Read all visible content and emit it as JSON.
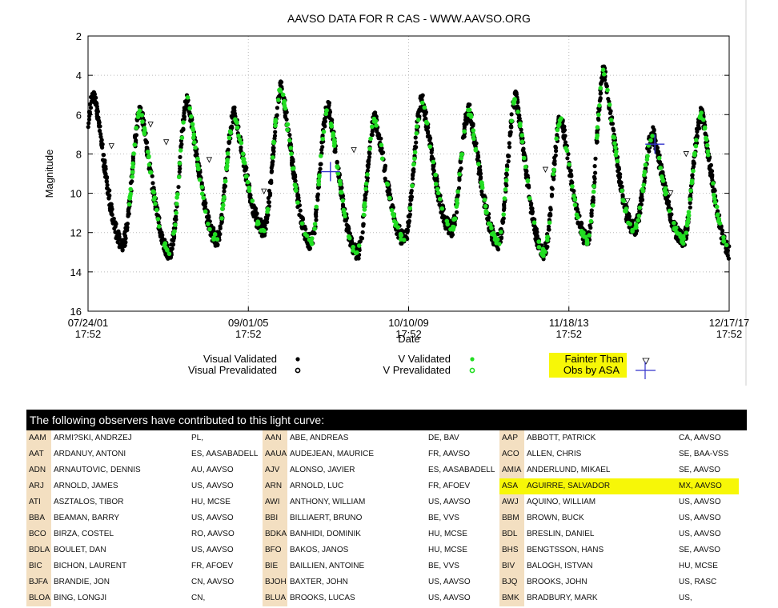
{
  "chart_data": {
    "type": "scatter",
    "title": "AAVSO DATA FOR R CAS - WWW.AAVSO.ORG",
    "xlabel": "Date",
    "ylabel": "Magnitude",
    "y_reversed": true,
    "ylim": [
      16,
      2
    ],
    "yticks": [
      "2",
      "4",
      "6",
      "8",
      "10",
      "12",
      "14",
      "16"
    ],
    "xticks": [
      {
        "date": "07/24/01",
        "time": "17:52"
      },
      {
        "date": "09/01/05",
        "time": "17:52"
      },
      {
        "date": "10/10/09",
        "time": "17:52"
      },
      {
        "date": "11/18/13",
        "time": "17:52"
      },
      {
        "date": "12/17/17",
        "time": "17:52"
      }
    ],
    "grid": true,
    "x_span_years": 16.4,
    "period_days": 430,
    "maxima": [
      {
        "year": 0.15,
        "mag": 5.0
      },
      {
        "year": 1.35,
        "mag": 5.8
      },
      {
        "year": 2.55,
        "mag": 5.3
      },
      {
        "year": 3.75,
        "mag": 6.0
      },
      {
        "year": 4.95,
        "mag": 4.6
      },
      {
        "year": 6.15,
        "mag": 5.6
      },
      {
        "year": 7.35,
        "mag": 6.2
      },
      {
        "year": 8.55,
        "mag": 5.3
      },
      {
        "year": 9.75,
        "mag": 5.8
      },
      {
        "year": 10.95,
        "mag": 5.2
      },
      {
        "year": 12.1,
        "mag": 6.2
      },
      {
        "year": 13.2,
        "mag": 3.8
      },
      {
        "year": 14.45,
        "mag": 7.0
      },
      {
        "year": 15.7,
        "mag": 6.0
      }
    ],
    "fainter_than": [
      {
        "year": 0.6,
        "mag": 7.6
      },
      {
        "year": 1.6,
        "mag": 6.5
      },
      {
        "year": 2.0,
        "mag": 7.4
      },
      {
        "year": 3.1,
        "mag": 8.3
      },
      {
        "year": 4.5,
        "mag": 9.9
      },
      {
        "year": 6.8,
        "mag": 7.8
      },
      {
        "year": 11.7,
        "mag": 8.8
      },
      {
        "year": 13.8,
        "mag": 10.4
      },
      {
        "year": 14.9,
        "mag": 10.0
      },
      {
        "year": 15.3,
        "mag": 8.0
      }
    ],
    "asa_points": [
      {
        "year": 6.2,
        "mag": 8.9
      },
      {
        "year": 14.5,
        "mag": 7.5
      }
    ],
    "legend": [
      {
        "label": "Visual Validated",
        "symbol": "dot",
        "color": "#000000"
      },
      {
        "label": "Visual Prevalidated",
        "symbol": "open-dot",
        "color": "#000000"
      },
      {
        "label": "V Validated",
        "symbol": "dot",
        "color": "#22dd22"
      },
      {
        "label": "V Prevalidated",
        "symbol": "open-dot",
        "color": "#22dd22"
      },
      {
        "label": "Fainter Than",
        "symbol": "triangle",
        "color": "#000000"
      },
      {
        "label": "Obs by ASA",
        "symbol": "cross",
        "color": "#3333cc"
      }
    ]
  },
  "observers": {
    "header": "The following observers have contributed to this light curve:",
    "rows": [
      [
        [
          "AAM",
          "ARMI?SKI, ANDRZEJ",
          "PL,"
        ],
        [
          "AAN",
          "ABE, ANDREAS",
          "DE, BAV"
        ],
        [
          "AAP",
          "ABBOTT, PATRICK",
          "CA, AAVSO"
        ]
      ],
      [
        [
          "AAT",
          "ARDANUY, ANTONI",
          "ES, AASABADELL"
        ],
        [
          "AAUA",
          "AUDEJEAN, MAURICE",
          "FR, AAVSO"
        ],
        [
          "ACO",
          "ALLEN, CHRIS",
          "SE, BAA-VSS"
        ]
      ],
      [
        [
          "ADN",
          "ARNAUTOVIC, DENNIS",
          "AU, AAVSO"
        ],
        [
          "AJV",
          "ALONSO, JAVIER",
          "ES, AASABADELL"
        ],
        [
          "AMIA",
          "ANDERLUND, MIKAEL",
          "SE, AAVSO"
        ]
      ],
      [
        [
          "ARJ",
          "ARNOLD, JAMES",
          "US, AAVSO"
        ],
        [
          "ARN",
          "ARNOLD, LUC",
          "FR, AFOEV"
        ],
        [
          "ASA",
          "AGUIRRE, SALVADOR",
          "MX, AAVSO"
        ]
      ],
      [
        [
          "ATI",
          "ASZTALOS, TIBOR",
          "HU, MCSE"
        ],
        [
          "AWI",
          "ANTHONY, WILLIAM",
          "US, AAVSO"
        ],
        [
          "AWJ",
          "AQUINO, WILLIAM",
          "US, AAVSO"
        ]
      ],
      [
        [
          "BBA",
          "BEAMAN, BARRY",
          "US, AAVSO"
        ],
        [
          "BBI",
          "BILLIAERT, BRUNO",
          "BE, VVS"
        ],
        [
          "BBM",
          "BROWN, BUCK",
          "US, AAVSO"
        ]
      ],
      [
        [
          "BCO",
          "BIRZA, COSTEL",
          "RO, AAVSO"
        ],
        [
          "BDKA",
          "BANHIDI, DOMINIK",
          "HU, MCSE"
        ],
        [
          "BDL",
          "BRESLIN, DANIEL",
          "US, AAVSO"
        ]
      ],
      [
        [
          "BDLA",
          "BOULET, DAN",
          "US, AAVSO"
        ],
        [
          "BFO",
          "BAKOS, JANOS",
          "HU, MCSE"
        ],
        [
          "BHS",
          "BENGTSSON, HANS",
          "SE, AAVSO"
        ]
      ],
      [
        [
          "BIC",
          "BICHON, LAURENT",
          "FR, AFOEV"
        ],
        [
          "BIE",
          "BAILLIEN, ANTOINE",
          "BE, VVS"
        ],
        [
          "BIV",
          "BALOGH, ISTVAN",
          "HU, MCSE"
        ]
      ],
      [
        [
          "BJFA",
          "BRANDIE, JON",
          "CN, AAVSO"
        ],
        [
          "BJOH",
          "BAXTER, JOHN",
          "US, AAVSO"
        ],
        [
          "BJQ",
          "BROOKS, JOHN",
          "US, RASC"
        ]
      ],
      [
        [
          "BLOA",
          "BING, LONGJI",
          "CN,"
        ],
        [
          "BLUA",
          "BROOKS, LUCAS",
          "US, AAVSO"
        ],
        [
          "BMK",
          "BRADBURY, MARK",
          "US,"
        ]
      ]
    ]
  },
  "colors": {
    "visual": "#000000",
    "v_band": "#22dd22",
    "asa": "#3333cc",
    "highlight": "#f7f707",
    "code_bg": "#f3dfc1"
  }
}
